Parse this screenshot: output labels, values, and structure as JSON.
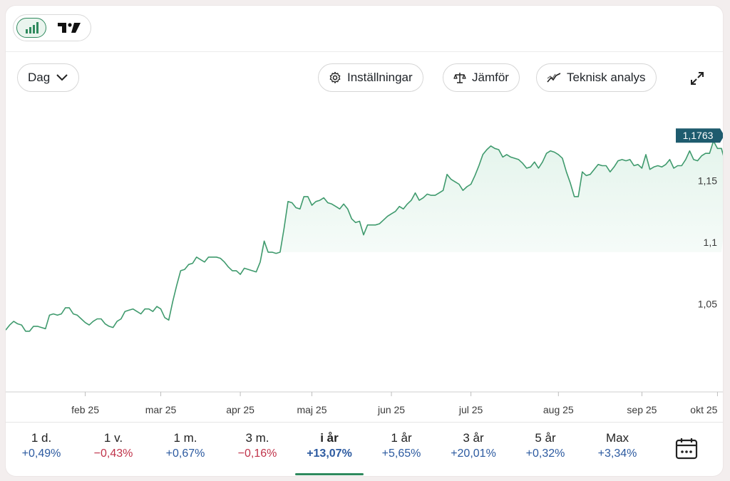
{
  "toolbar": {
    "interval_label": "Dag",
    "settings_label": "Inställningar",
    "compare_label": "Jämför",
    "technical_label": "Teknisk analys"
  },
  "chart_data": {
    "type": "area",
    "current_value_label": "1,1763",
    "y_ticks": [
      {
        "value": 1.05,
        "label": "1,05"
      },
      {
        "value": 1.1,
        "label": "1,1"
      },
      {
        "value": 1.15,
        "label": "1,15"
      }
    ],
    "ylim": [
      0.98,
      1.205
    ],
    "x_ticks": [
      {
        "index": 20,
        "label": "feb 25"
      },
      {
        "index": 39,
        "label": "mar 25"
      },
      {
        "index": 59,
        "label": "apr 25"
      },
      {
        "index": 77,
        "label": "maj 25"
      },
      {
        "index": 97,
        "label": "jun 25"
      },
      {
        "index": 117,
        "label": "jul 25"
      },
      {
        "index": 139,
        "label": "aug 25"
      },
      {
        "index": 160,
        "label": "sep 25"
      },
      {
        "index": 179,
        "label": "okt 25"
      }
    ],
    "x_count": 181,
    "area_baseline": 1.092,
    "colors": {
      "line": "#3f9a6d",
      "fill": "#e4f4ec",
      "badge": "#1e5b6e"
    },
    "values": [
      1.029,
      1.033,
      1.036,
      1.034,
      1.033,
      1.028,
      1.028,
      1.032,
      1.032,
      1.031,
      1.03,
      1.041,
      1.042,
      1.041,
      1.042,
      1.047,
      1.047,
      1.042,
      1.041,
      1.038,
      1.035,
      1.033,
      1.036,
      1.038,
      1.038,
      1.034,
      1.032,
      1.031,
      1.036,
      1.038,
      1.044,
      1.045,
      1.046,
      1.044,
      1.042,
      1.046,
      1.046,
      1.044,
      1.048,
      1.046,
      1.039,
      1.037,
      1.052,
      1.065,
      1.077,
      1.078,
      1.082,
      1.083,
      1.088,
      1.086,
      1.084,
      1.088,
      1.088,
      1.088,
      1.087,
      1.084,
      1.08,
      1.077,
      1.077,
      1.074,
      1.079,
      1.078,
      1.077,
      1.076,
      1.084,
      1.101,
      1.092,
      1.092,
      1.091,
      1.092,
      1.111,
      1.133,
      1.132,
      1.128,
      1.127,
      1.137,
      1.137,
      1.13,
      1.133,
      1.134,
      1.136,
      1.132,
      1.131,
      1.129,
      1.127,
      1.131,
      1.127,
      1.119,
      1.116,
      1.117,
      1.106,
      1.114,
      1.114,
      1.114,
      1.115,
      1.118,
      1.121,
      1.123,
      1.125,
      1.129,
      1.127,
      1.131,
      1.134,
      1.14,
      1.134,
      1.136,
      1.139,
      1.138,
      1.138,
      1.14,
      1.142,
      1.155,
      1.151,
      1.149,
      1.147,
      1.142,
      1.145,
      1.147,
      1.154,
      1.162,
      1.171,
      1.175,
      1.178,
      1.176,
      1.175,
      1.169,
      1.171,
      1.169,
      1.168,
      1.167,
      1.164,
      1.16,
      1.161,
      1.165,
      1.16,
      1.165,
      1.172,
      1.174,
      1.173,
      1.171,
      1.168,
      1.157,
      1.148,
      1.137,
      1.137,
      1.157,
      1.154,
      1.155,
      1.159,
      1.163,
      1.162,
      1.162,
      1.157,
      1.161,
      1.166,
      1.167,
      1.166,
      1.167,
      1.162,
      1.163,
      1.16,
      1.171,
      1.159,
      1.161,
      1.162,
      1.161,
      1.163,
      1.167,
      1.16,
      1.162,
      1.162,
      1.167,
      1.174,
      1.167,
      1.166,
      1.17,
      1.172,
      1.172,
      1.182,
      1.176,
      1.176,
      1.164,
      1.169,
      1.172
    ]
  },
  "periods": [
    {
      "label": "1 d.",
      "value": "+0,49%",
      "sign": "pos"
    },
    {
      "label": "1 v.",
      "value": "−0,43%",
      "sign": "neg"
    },
    {
      "label": "1 m.",
      "value": "+0,67%",
      "sign": "pos"
    },
    {
      "label": "3 m.",
      "value": "−0,16%",
      "sign": "neg"
    },
    {
      "label": "i år",
      "value": "+13,07%",
      "sign": "pos",
      "active": true
    },
    {
      "label": "1 år",
      "value": "+5,65%",
      "sign": "pos"
    },
    {
      "label": "3 år",
      "value": "+20,01%",
      "sign": "pos"
    },
    {
      "label": "5 år",
      "value": "+0,32%",
      "sign": "pos"
    },
    {
      "label": "Max",
      "value": "+3,34%",
      "sign": "pos"
    }
  ]
}
